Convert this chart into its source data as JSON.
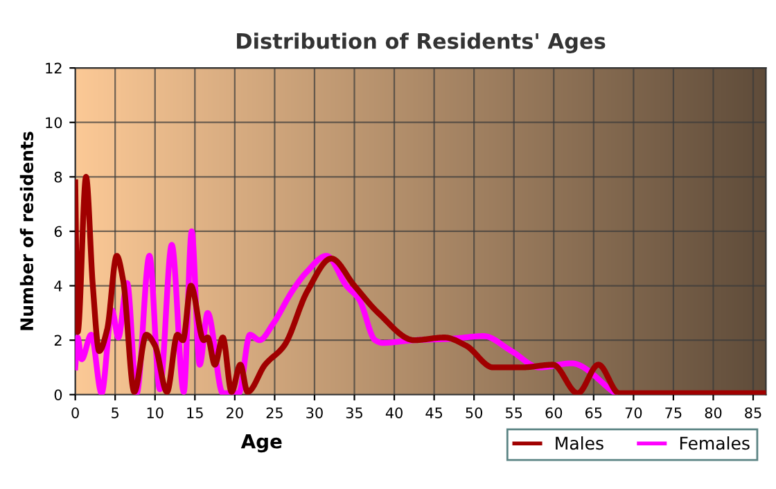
{
  "chart_data": {
    "type": "line",
    "title": "Distribution of Residents' Ages",
    "xlabel": "Age",
    "ylabel": "Number of residents",
    "xlim": [
      0,
      86.6
    ],
    "xticks": [
      0,
      5,
      10,
      15,
      20,
      25,
      30,
      35,
      40,
      45,
      50,
      55,
      60,
      65,
      70,
      75,
      80,
      85
    ],
    "ylim": [
      0,
      12
    ],
    "yticks": [
      0,
      2,
      4,
      6,
      8,
      10,
      12
    ],
    "grid": true,
    "legend": "bottom right",
    "marker": "none",
    "line_style": "solid",
    "series": [
      {
        "name": "Males",
        "color": "#a00000",
        "x": [
          0,
          0.3,
          1.35,
          2.2,
          3,
          4,
          5.2,
          6,
          7.4,
          8.9,
          10,
          11.5,
          12.8,
          13.5,
          14.5,
          16.1,
          16.6,
          17.5,
          18.5,
          19.6,
          20.7,
          21.6,
          23.8,
          26.2,
          29.1,
          32.1,
          35,
          38,
          42.5,
          46.3,
          49,
          52.4,
          56,
          59.9,
          63,
          65.6,
          68.2,
          75,
          86.6
        ],
        "values": [
          7.8,
          2.3,
          8,
          4,
          1.6,
          2.4,
          5.1,
          4.2,
          0.1,
          2.2,
          1.8,
          0.1,
          2.2,
          2,
          4,
          2,
          2.1,
          1.1,
          2.1,
          0.1,
          1.1,
          0.1,
          1.1,
          1.8,
          3.8,
          5,
          4,
          3,
          2,
          2.1,
          1.8,
          1,
          1,
          1.1,
          0.05,
          1.1,
          0.05,
          0.05,
          0.05
        ]
      },
      {
        "name": "Females",
        "color": "#ff00ff",
        "x": [
          0,
          0.3,
          0.8,
          2,
          3.3,
          4.6,
          5.4,
          6.5,
          7.7,
          9.3,
          10.6,
          12.1,
          13.6,
          14.6,
          15.6,
          16.6,
          18.5,
          20.5,
          21.9,
          23.1,
          24.8,
          27.2,
          29,
          31.5,
          34,
          35.6,
          37.6,
          38.5,
          42.5,
          47,
          51.2,
          54.7,
          58.2,
          62.2,
          67.7
        ],
        "values": [
          1,
          2.1,
          1.3,
          2.2,
          0.05,
          3.1,
          2.1,
          4.1,
          0.05,
          5.1,
          0.2,
          5.5,
          0.1,
          6,
          1.1,
          3,
          0.05,
          0.05,
          2.2,
          2,
          2.6,
          3.8,
          4.5,
          5.1,
          4,
          3.5,
          2,
          1.9,
          2,
          2.05,
          2.15,
          1.6,
          1,
          1.15,
          0.05
        ]
      }
    ]
  }
}
